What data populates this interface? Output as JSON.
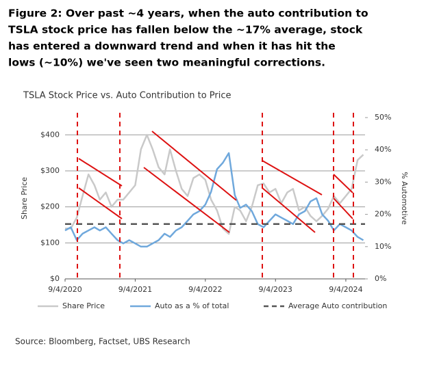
{
  "chart_data": {
    "type": "line",
    "title": [
      "Figure 2: Over past ~4 years, when the auto contribution to",
      "TSLA stock price has fallen below the ~17% average, stock",
      "has entered a downward trend and when it has hit the",
      "lows (~10%) we've seen two meaningful corrections."
    ],
    "subtitle": "TSLA Stock Price vs. Auto Contribution to Price",
    "y_label": "Share Price",
    "y2_label": "% Automotive",
    "source": "Source: Bloomberg, Factset, UBS Research",
    "x": [
      "2020-09-04",
      "2020-10-04",
      "2020-11-04",
      "2020-12-04",
      "2021-01-04",
      "2021-02-04",
      "2021-03-04",
      "2021-04-04",
      "2021-05-04",
      "2021-06-04",
      "2021-07-04",
      "2021-08-04",
      "2021-09-04",
      "2021-10-04",
      "2021-11-04",
      "2021-12-04",
      "2022-01-04",
      "2022-02-04",
      "2022-03-04",
      "2022-04-04",
      "2022-05-04",
      "2022-06-04",
      "2022-07-04",
      "2022-08-04",
      "2022-09-04",
      "2022-10-04",
      "2022-11-04",
      "2022-12-04",
      "2023-01-04",
      "2023-02-04",
      "2023-03-04",
      "2023-04-04",
      "2023-05-04",
      "2023-06-04",
      "2023-07-04",
      "2023-08-04",
      "2023-09-04",
      "2023-10-04",
      "2023-11-04",
      "2023-12-04",
      "2024-01-04",
      "2024-02-04",
      "2024-03-04",
      "2024-04-04",
      "2024-05-04",
      "2024-06-04",
      "2024-07-04",
      "2024-08-04",
      "2024-09-04",
      "2024-10-04",
      "2024-11-04",
      "2024-12-04"
    ],
    "xlim": [
      "2020-09-04",
      "2024-12-13"
    ],
    "xticks": [
      {
        "value": "2020-09-04",
        "label": "9/4/2020"
      },
      {
        "value": "2021-09-04",
        "label": "9/4/2021"
      },
      {
        "value": "2022-09-04",
        "label": "9/4/2022"
      },
      {
        "value": "2023-09-04",
        "label": "9/4/2023"
      },
      {
        "value": "2024-09-04",
        "label": "9/4/2024"
      }
    ],
    "ylim": [
      0,
      448
    ],
    "yticks": [
      {
        "value": 0,
        "label": "$0"
      },
      {
        "value": 100,
        "label": "$100"
      },
      {
        "value": 200,
        "label": "$200"
      },
      {
        "value": 300,
        "label": "$300"
      },
      {
        "value": 400,
        "label": "$400"
      }
    ],
    "y2lim": [
      0,
      50
    ],
    "y2ticks": [
      {
        "value": 0,
        "label": "0%"
      },
      {
        "value": 10,
        "label": "10%"
      },
      {
        "value": 20,
        "label": "20%"
      },
      {
        "value": 30,
        "label": "30%"
      },
      {
        "value": 40,
        "label": "40%"
      },
      {
        "value": 50,
        "label": "50%"
      }
    ],
    "grid": true,
    "series": [
      {
        "name": "Share Price",
        "color": "#c9c9c9",
        "values": [
          140,
          140,
          170,
          230,
          290,
          260,
          220,
          240,
          200,
          220,
          220,
          240,
          260,
          360,
          400,
          360,
          310,
          290,
          360,
          300,
          250,
          230,
          280,
          290,
          275,
          220,
          190,
          140,
          125,
          200,
          190,
          160,
          200,
          260,
          265,
          240,
          250,
          210,
          240,
          250,
          190,
          200,
          175,
          160,
          175,
          195,
          230,
          210,
          230,
          250,
          330,
          345
        ]
      },
      {
        "name": "Auto as a % of total",
        "color": "#6fa8dc",
        "axis": "y2",
        "values": [
          15,
          16,
          12,
          14,
          15,
          16,
          15,
          16,
          14,
          12,
          11,
          12,
          11,
          10,
          10,
          11,
          12,
          14,
          13,
          15,
          16,
          18,
          20,
          21,
          23,
          27,
          34,
          36,
          39,
          26,
          22,
          23,
          21,
          17,
          16,
          18,
          20,
          19,
          18,
          17,
          20,
          21,
          24,
          25,
          20,
          18,
          15,
          17,
          16,
          15,
          13,
          12
        ]
      }
    ],
    "hlines": [
      {
        "name": "Average Auto contribution",
        "value": 17,
        "axis": "y2",
        "color": "#555555"
      }
    ]
  }
}
